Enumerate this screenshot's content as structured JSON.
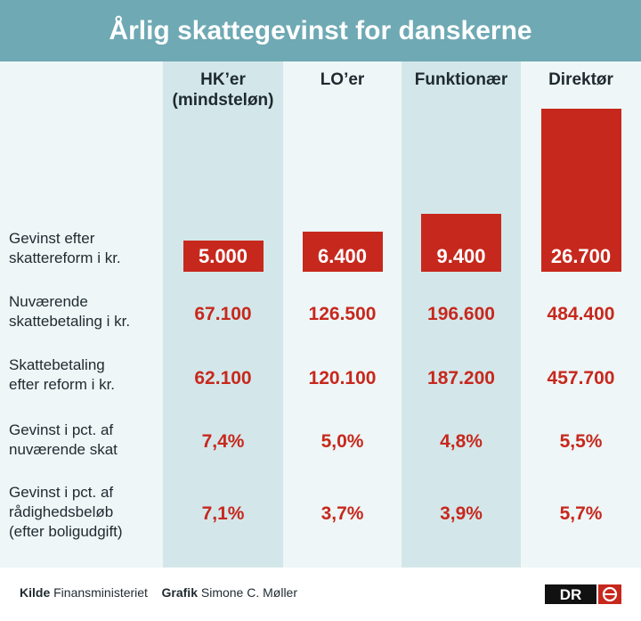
{
  "title": "Årlig skattegevinst for danskerne",
  "columns": [
    {
      "line1": "HK’er",
      "line2": "(mindsteløn)"
    },
    {
      "line1": "LO’er",
      "line2": ""
    },
    {
      "line1": "Funktionær",
      "line2": ""
    },
    {
      "line1": "Direktør",
      "line2": ""
    }
  ],
  "row_labels": [
    [
      "Gevinst efter",
      "skattereform i kr."
    ],
    [
      "Nuværende",
      "skattebetaling i kr."
    ],
    [
      "Skattebetaling",
      "efter reform i kr."
    ],
    [
      "Gevinst i pct. af",
      "nuværende skat"
    ],
    [
      "Gevinst i pct. af",
      "rådighedsbeløb",
      "(efter boligudgift)"
    ]
  ],
  "rows": {
    "gevinst_kr": [
      "5.000",
      "6.400",
      "9.400",
      "26.700"
    ],
    "nuvaerende_skat": [
      "67.100",
      "126.500",
      "196.600",
      "484.400"
    ],
    "skat_efter_reform": [
      "62.100",
      "120.100",
      "187.200",
      "457.700"
    ],
    "pct_af_skat": [
      "7,4%",
      "5,0%",
      "4,8%",
      "5,5%"
    ],
    "pct_af_raadighed": [
      "7,1%",
      "3,7%",
      "3,9%",
      "5,7%"
    ]
  },
  "chart_data": {
    "type": "bar",
    "title": "Årlig skattegevinst for danskerne",
    "categories": [
      "HK’er (mindsteløn)",
      "LO’er",
      "Funktionær",
      "Direktør"
    ],
    "series": [
      {
        "name": "Gevinst efter skattereform i kr.",
        "values": [
          5000,
          6400,
          9400,
          26700
        ]
      }
    ],
    "ylim": [
      0,
      26700
    ],
    "grid": false,
    "table": {
      "Nuværende skattebetaling i kr.": [
        67100,
        126500,
        196600,
        484400
      ],
      "Skattebetaling efter reform i kr.": [
        62100,
        120100,
        187200,
        457700
      ],
      "Gevinst i pct. af nuværende skat": [
        7.4,
        5.0,
        4.8,
        5.5
      ],
      "Gevinst i pct. af rådighedsbeløb (efter boligudgift)": [
        7.1,
        3.7,
        3.9,
        5.7
      ]
    }
  },
  "footer": {
    "source_label": "Kilde",
    "source_value": "Finansministeriet",
    "graphic_label": "Grafik",
    "graphic_value": "Simone C. Møller",
    "logo_text": "DR"
  },
  "colors": {
    "header": "#6ea9b4",
    "bar": "#c7281d",
    "band": "#d3e7ea",
    "panel": "#eef6f7"
  }
}
